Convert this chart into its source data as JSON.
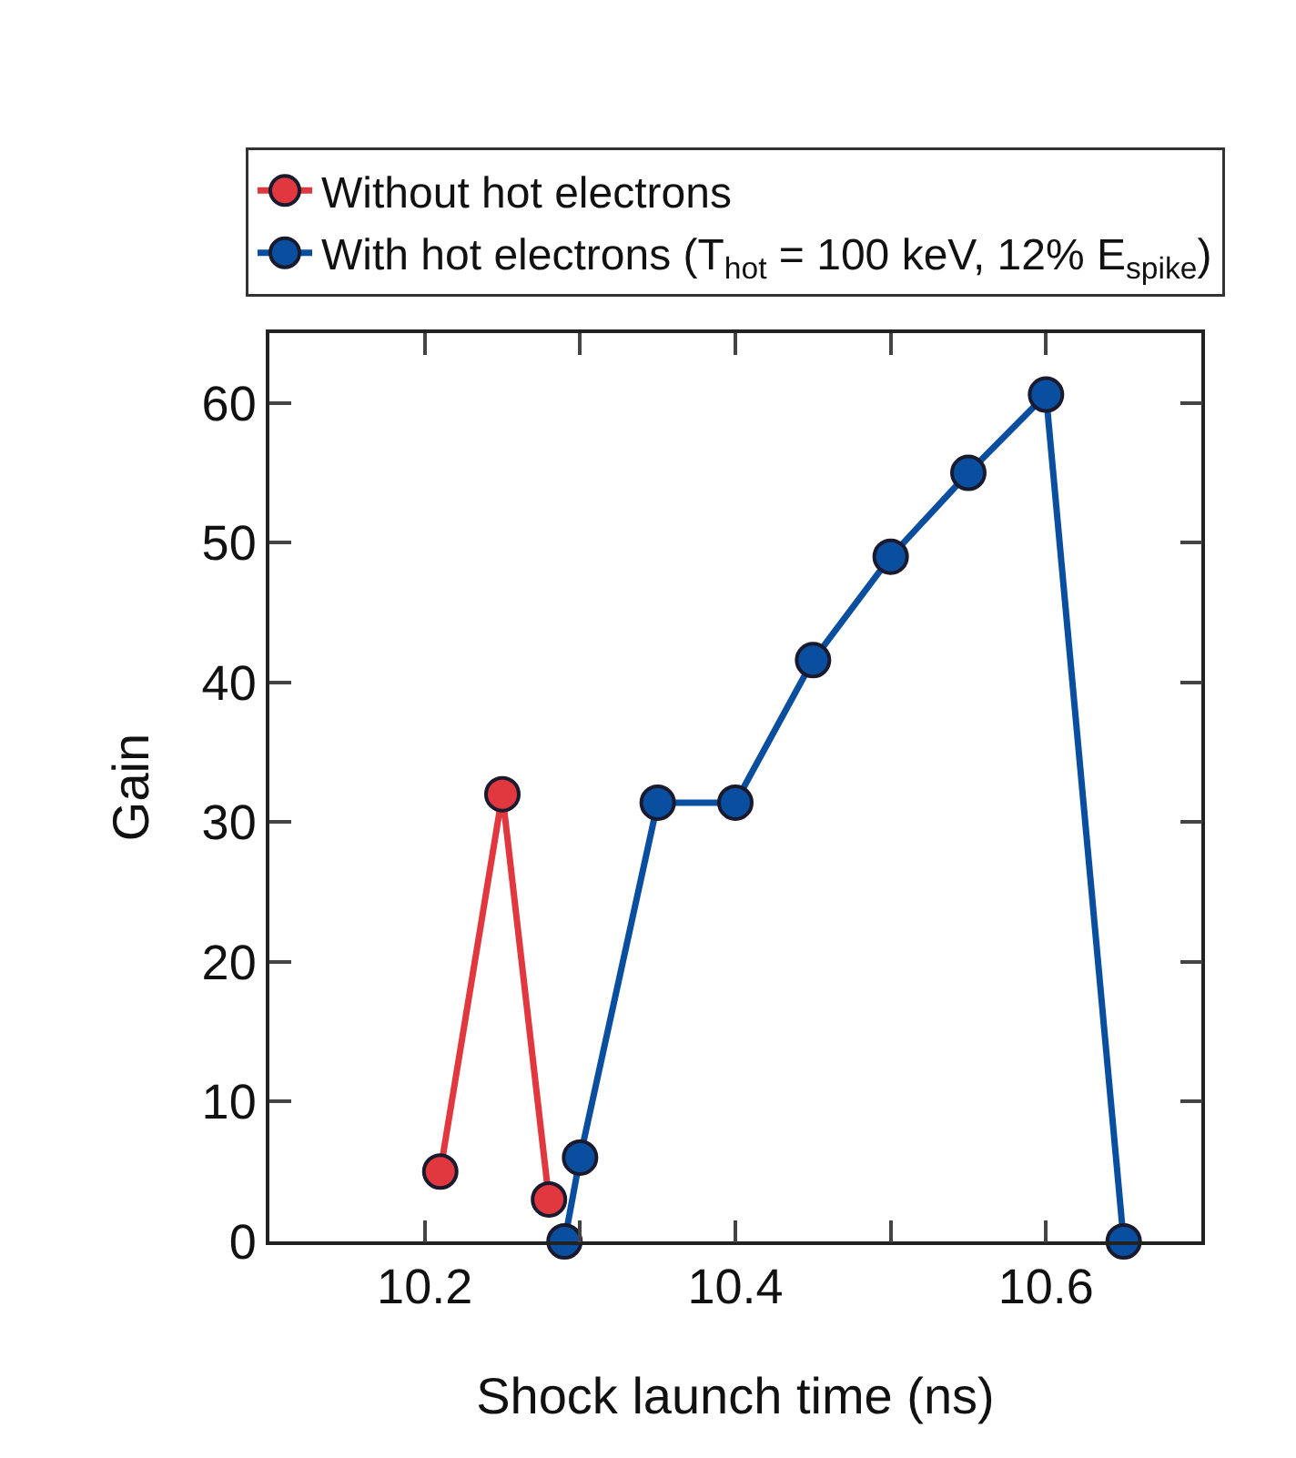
{
  "chart_data": {
    "type": "line",
    "xlabel": "Shock launch time (ns)",
    "ylabel": "Gain",
    "series": [
      {
        "name": "Without hot electrons",
        "color": "#e0383e",
        "x": [
          10.21,
          10.25,
          10.28
        ],
        "values": [
          5,
          32,
          3
        ]
      },
      {
        "name": "With hot electrons (T$_{hot}$ = 100 keV, 12% E$_{spike}$)",
        "color": "#0a4ea0",
        "x": [
          10.29,
          10.3,
          10.35,
          10.4,
          10.45,
          10.5,
          10.55,
          10.6,
          10.65
        ],
        "values": [
          0,
          6,
          31.4,
          31.4,
          41.6,
          49,
          55,
          60.6,
          0
        ]
      }
    ],
    "xlim": [
      10.1,
      10.7
    ],
    "xticks": [
      10.2,
      {
        "value": 10.3,
        "label": null
      },
      10.4,
      {
        "value": 10.5,
        "label": null
      },
      10.6
    ],
    "ylim": [
      0,
      65
    ],
    "yticks": [
      0,
      10,
      20,
      30,
      40,
      50,
      60
    ],
    "grid": false,
    "legend": "top",
    "marker": "circle",
    "line_style": "solid"
  }
}
